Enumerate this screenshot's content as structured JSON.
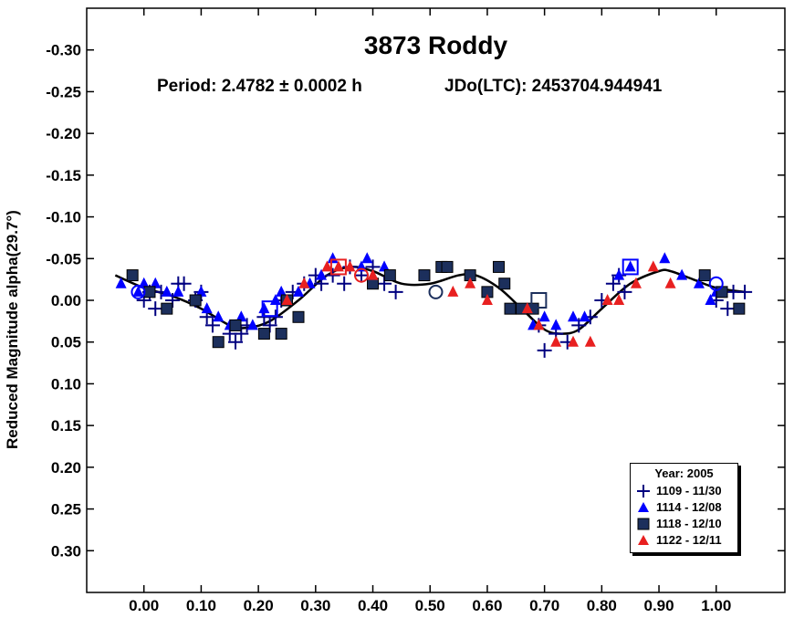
{
  "chart_data": {
    "type": "scatter",
    "title": "3873 Roddy",
    "subtitle_period": "Period: 2.4782 ± 0.0002 h",
    "subtitle_epoch": "JDo(LTC): 2453704.944941",
    "ylabel": "Reduced Magnitude alpha(29.7°)",
    "xlabel": "",
    "xlim": [
      -0.1,
      1.12
    ],
    "ylim": [
      -0.35,
      0.35
    ],
    "y_inverted": true,
    "grid": false,
    "legend_position": "bottom-right",
    "x_ticks": [
      "0.00",
      "0.10",
      "0.20",
      "0.30",
      "0.40",
      "0.50",
      "0.60",
      "0.70",
      "0.80",
      "0.90",
      "1.00"
    ],
    "y_ticks": [
      "-0.30",
      "-0.25",
      "-0.20",
      "-0.15",
      "-0.10",
      "-0.05",
      "0.00",
      "0.05",
      "0.10",
      "0.15",
      "0.20",
      "0.25",
      "0.30"
    ],
    "legend_title": "Year: 2005",
    "series": [
      {
        "name": "1109 - 11/30",
        "marker": "plus",
        "color": "#000080",
        "points": [
          [
            0.0,
            0.0
          ],
          [
            0.01,
            -0.01
          ],
          [
            0.02,
            0.01
          ],
          [
            0.03,
            -0.01
          ],
          [
            0.05,
            0.0
          ],
          [
            0.06,
            -0.02
          ],
          [
            0.07,
            -0.02
          ],
          [
            0.09,
            0.0
          ],
          [
            0.1,
            -0.01
          ],
          [
            0.11,
            0.02
          ],
          [
            0.12,
            0.03
          ],
          [
            0.15,
            0.04
          ],
          [
            0.16,
            0.05
          ],
          [
            0.17,
            0.04
          ],
          [
            0.18,
            0.03
          ],
          [
            0.21,
            0.02
          ],
          [
            0.22,
            0.03
          ],
          [
            0.23,
            0.02
          ],
          [
            0.24,
            0.0
          ],
          [
            0.26,
            -0.01
          ],
          [
            0.28,
            -0.02
          ],
          [
            0.3,
            -0.03
          ],
          [
            0.31,
            -0.02
          ],
          [
            0.33,
            -0.03
          ],
          [
            0.35,
            -0.02
          ],
          [
            0.36,
            -0.04
          ],
          [
            0.38,
            -0.03
          ],
          [
            0.4,
            -0.04
          ],
          [
            0.42,
            -0.02
          ],
          [
            0.44,
            -0.01
          ],
          [
            0.69,
            0.03
          ],
          [
            0.7,
            0.06
          ],
          [
            0.72,
            0.04
          ],
          [
            0.74,
            0.05
          ],
          [
            0.76,
            0.03
          ],
          [
            0.78,
            0.02
          ],
          [
            0.8,
            0.0
          ],
          [
            0.82,
            -0.02
          ],
          [
            0.83,
            -0.03
          ],
          [
            0.84,
            -0.01
          ],
          [
            1.0,
            0.0
          ],
          [
            1.02,
            0.01
          ],
          [
            1.03,
            -0.01
          ],
          [
            1.05,
            -0.01
          ]
        ]
      },
      {
        "name": "1114 - 12/08",
        "marker": "triangle",
        "color": "#0000ff",
        "points": [
          [
            -0.04,
            -0.02
          ],
          [
            -0.01,
            -0.01
          ],
          [
            0.0,
            -0.02
          ],
          [
            0.02,
            -0.02
          ],
          [
            0.04,
            -0.01
          ],
          [
            0.06,
            -0.01
          ],
          [
            0.1,
            -0.01
          ],
          [
            0.11,
            0.01
          ],
          [
            0.13,
            0.02
          ],
          [
            0.15,
            0.03
          ],
          [
            0.16,
            0.03
          ],
          [
            0.17,
            0.02
          ],
          [
            0.19,
            0.03
          ],
          [
            0.21,
            0.01
          ],
          [
            0.23,
            0.0
          ],
          [
            0.24,
            -0.01
          ],
          [
            0.27,
            -0.01
          ],
          [
            0.29,
            -0.02
          ],
          [
            0.31,
            -0.03
          ],
          [
            0.33,
            -0.05
          ],
          [
            0.38,
            -0.04
          ],
          [
            0.39,
            -0.05
          ],
          [
            0.42,
            -0.04
          ],
          [
            0.68,
            0.03
          ],
          [
            0.7,
            0.02
          ],
          [
            0.72,
            0.03
          ],
          [
            0.75,
            0.02
          ],
          [
            0.77,
            0.02
          ],
          [
            0.83,
            -0.03
          ],
          [
            0.85,
            -0.04
          ],
          [
            0.91,
            -0.05
          ],
          [
            0.94,
            -0.03
          ],
          [
            0.97,
            -0.02
          ],
          [
            0.99,
            0.0
          ],
          [
            1.0,
            -0.01
          ]
        ]
      },
      {
        "name": "1118 - 12/10",
        "marker": "square",
        "color": "#1c2f5c",
        "points": [
          [
            -0.02,
            -0.03
          ],
          [
            0.01,
            -0.01
          ],
          [
            0.04,
            0.01
          ],
          [
            0.09,
            0.0
          ],
          [
            0.13,
            0.05
          ],
          [
            0.16,
            0.03
          ],
          [
            0.21,
            0.04
          ],
          [
            0.24,
            0.04
          ],
          [
            0.27,
            0.02
          ],
          [
            0.25,
            0.0
          ],
          [
            0.4,
            -0.02
          ],
          [
            0.43,
            -0.03
          ],
          [
            0.49,
            -0.03
          ],
          [
            0.52,
            -0.04
          ],
          [
            0.53,
            -0.04
          ],
          [
            0.57,
            -0.03
          ],
          [
            0.6,
            -0.01
          ],
          [
            0.62,
            -0.04
          ],
          [
            0.63,
            -0.02
          ],
          [
            0.64,
            0.01
          ],
          [
            0.66,
            0.01
          ],
          [
            0.68,
            0.01
          ],
          [
            0.98,
            -0.03
          ],
          [
            1.01,
            -0.01
          ],
          [
            1.04,
            0.01
          ]
        ]
      },
      {
        "name": "1122 - 12/11",
        "marker": "triangle",
        "color": "#e82020",
        "points": [
          [
            0.25,
            0.0
          ],
          [
            0.28,
            -0.02
          ],
          [
            0.32,
            -0.04
          ],
          [
            0.34,
            -0.04
          ],
          [
            0.36,
            -0.04
          ],
          [
            0.4,
            -0.03
          ],
          [
            0.54,
            -0.01
          ],
          [
            0.57,
            -0.02
          ],
          [
            0.6,
            0.0
          ],
          [
            0.67,
            0.01
          ],
          [
            0.69,
            0.03
          ],
          [
            0.72,
            0.05
          ],
          [
            0.75,
            0.05
          ],
          [
            0.78,
            0.05
          ],
          [
            0.81,
            0.0
          ],
          [
            0.83,
            0.0
          ],
          [
            0.86,
            -0.02
          ],
          [
            0.89,
            -0.04
          ],
          [
            0.92,
            -0.02
          ]
        ]
      }
    ],
    "fit_curve": {
      "name": "",
      "color": "#000000",
      "points": [
        [
          -0.05,
          -0.03
        ],
        [
          0.0,
          -0.015
        ],
        [
          0.05,
          -0.005
        ],
        [
          0.1,
          0.01
        ],
        [
          0.15,
          0.03
        ],
        [
          0.18,
          0.033
        ],
        [
          0.22,
          0.025
        ],
        [
          0.27,
          0.0
        ],
        [
          0.32,
          -0.03
        ],
        [
          0.36,
          -0.04
        ],
        [
          0.4,
          -0.035
        ],
        [
          0.45,
          -0.02
        ],
        [
          0.5,
          -0.02
        ],
        [
          0.55,
          -0.03
        ],
        [
          0.58,
          -0.03
        ],
        [
          0.62,
          -0.015
        ],
        [
          0.66,
          0.01
        ],
        [
          0.7,
          0.035
        ],
        [
          0.73,
          0.04
        ],
        [
          0.76,
          0.035
        ],
        [
          0.8,
          0.01
        ],
        [
          0.85,
          -0.02
        ],
        [
          0.9,
          -0.035
        ],
        [
          0.92,
          -0.035
        ],
        [
          0.96,
          -0.025
        ],
        [
          1.0,
          -0.015
        ],
        [
          1.05,
          -0.01
        ]
      ]
    },
    "highlighted_points": [
      {
        "marker": "open-circle",
        "color": "#0000ff",
        "x": -0.01,
        "y": -0.01
      },
      {
        "marker": "open-circle",
        "color": "#1c2f5c",
        "x": 0.51,
        "y": -0.01
      },
      {
        "marker": "open-circle",
        "color": "#e82020",
        "x": 0.38,
        "y": -0.03
      },
      {
        "marker": "open-circle",
        "color": "#0000ff",
        "x": 1.0,
        "y": -0.02
      },
      {
        "marker": "open-square",
        "color": "#0000ff",
        "x": 0.22,
        "y": 0.01
      },
      {
        "marker": "open-square",
        "color": "#1c2f5c",
        "x": 0.69,
        "y": 0.0
      },
      {
        "marker": "open-square",
        "color": "#e82020",
        "x": 0.34,
        "y": -0.04
      },
      {
        "marker": "open-square",
        "color": "#0000ff",
        "x": 0.85,
        "y": -0.04
      }
    ]
  }
}
